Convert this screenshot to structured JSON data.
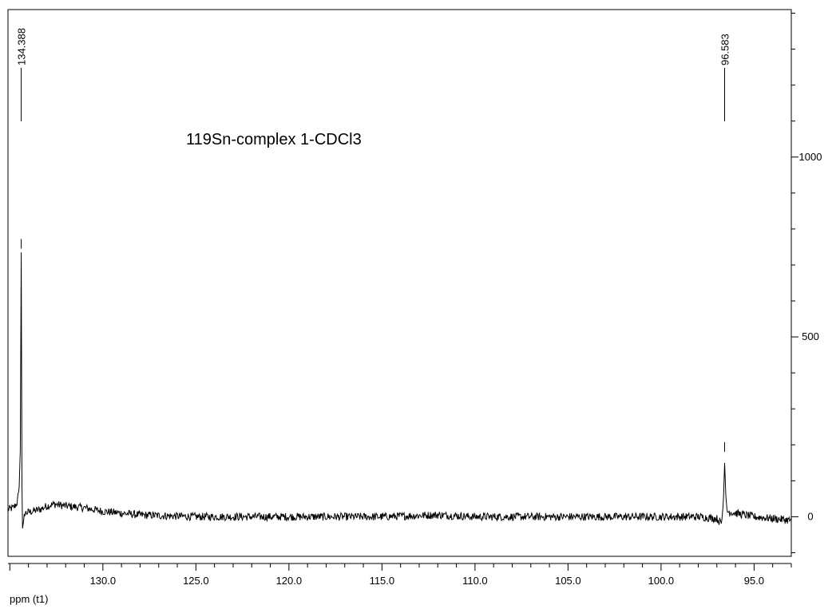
{
  "chart_data": {
    "type": "line",
    "title": "119Sn-complex 1-CDCl3",
    "xlabel": "ppm (t1)",
    "ylabel": "",
    "x_reversed": true,
    "xlim": [
      135.1,
      93.0
    ],
    "ylim": [
      -110,
      1410
    ],
    "x_ticks": [
      {
        "value": 130.0,
        "label": "130.0"
      },
      {
        "value": 125.0,
        "label": "125.0"
      },
      {
        "value": 120.0,
        "label": "120.0"
      },
      {
        "value": 115.0,
        "label": "115.0"
      },
      {
        "value": 110.0,
        "label": "110.0"
      },
      {
        "value": 105.0,
        "label": "105.0"
      },
      {
        "value": 100.0,
        "label": "100.0"
      },
      {
        "value": 95.0,
        "label": "95.0"
      }
    ],
    "x_minor_step": 1.0,
    "y_ticks": [
      {
        "value": 0,
        "label": "0"
      },
      {
        "value": 500,
        "label": "500"
      },
      {
        "value": 1000,
        "label": "1000"
      }
    ],
    "y_minor_step": 100,
    "peaks": [
      {
        "x": 134.388,
        "label": "134.388",
        "height": 750
      },
      {
        "x": 96.583,
        "label": "96.583",
        "height": 185
      }
    ],
    "series": [
      {
        "values_description_only": false,
        "points": [
          [
            135.1,
            20
          ],
          [
            134.8,
            25
          ],
          [
            134.6,
            40
          ],
          [
            134.5,
            80
          ],
          [
            134.43,
            200
          ],
          [
            134.4,
            640
          ],
          [
            134.388,
            735
          ],
          [
            134.37,
            420
          ],
          [
            134.34,
            -40
          ],
          [
            134.2,
            10
          ],
          [
            133.8,
            15
          ],
          [
            133.4,
            20
          ],
          [
            133.0,
            30
          ],
          [
            132.6,
            35
          ],
          [
            132.0,
            30
          ],
          [
            131.0,
            25
          ],
          [
            130.0,
            15
          ],
          [
            128.0,
            5
          ],
          [
            125.0,
            0
          ],
          [
            120.0,
            0
          ],
          [
            115.0,
            0
          ],
          [
            112.0,
            5
          ],
          [
            110.0,
            0
          ],
          [
            105.0,
            0
          ],
          [
            100.0,
            0
          ],
          [
            98.0,
            0
          ],
          [
            97.0,
            -5
          ],
          [
            96.75,
            -20
          ],
          [
            96.65,
            40
          ],
          [
            96.583,
            150
          ],
          [
            96.52,
            60
          ],
          [
            96.45,
            15
          ],
          [
            96.0,
            10
          ],
          [
            95.5,
            5
          ],
          [
            95.0,
            0
          ],
          [
            94.0,
            -5
          ],
          [
            93.0,
            -10
          ]
        ]
      }
    ]
  }
}
